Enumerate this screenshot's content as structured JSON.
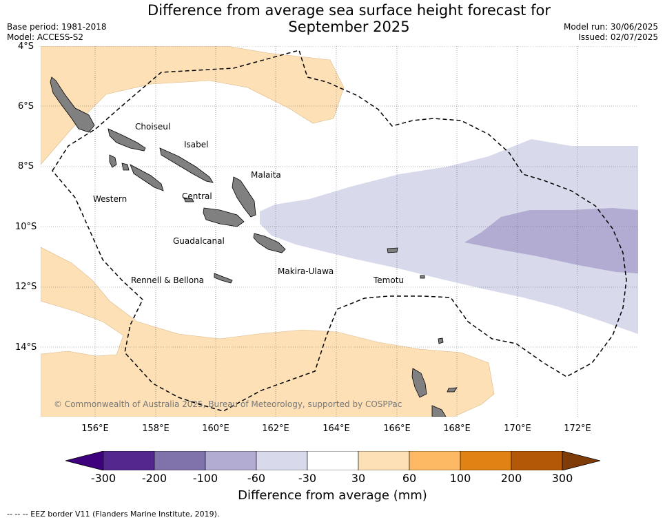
{
  "title_line1": "Difference from average sea surface height forecast for",
  "title_line2": "September 2025",
  "base_period": "Base period: 1981-2018",
  "model": "Model: ACCESS-S2",
  "model_run": "Model run: 30/06/2025",
  "issued": "Issued: 02/07/2025",
  "lat_labels": [
    "4°S",
    "6°S",
    "8°S",
    "10°S",
    "12°S",
    "14°S"
  ],
  "lon_labels": [
    "156°E",
    "158°E",
    "160°E",
    "162°E",
    "164°E",
    "166°E",
    "168°E",
    "170°E",
    "172°E"
  ],
  "places": {
    "choiseul": "Choiseul",
    "isabel": "Isabel",
    "malaita": "Malaita",
    "western": "Western",
    "central": "Central",
    "guadalcanal": "Guadalcanal",
    "makira": "Makira-Ulawa",
    "rennell": "Rennell & Bellona",
    "temotu": "Temotu"
  },
  "copyright": "© Commonwealth of Australia 2025, Bureau of Meteorology, supported by COSPPac",
  "colorbar": {
    "ticks": [
      "-300",
      "-200",
      "-100",
      "-60",
      "-30",
      "30",
      "60",
      "100",
      "200",
      "300"
    ],
    "colors": [
      "#3f007d",
      "#54278f",
      "#8073ac",
      "#b2abd2",
      "#d8daeb",
      "#ffffff",
      "#fee0b6",
      "#fdb863",
      "#e08214",
      "#b35806",
      "#7f3b08"
    ],
    "label": "Difference from average (mm)"
  },
  "eez_note": "--  --  -- EEZ border V11 (Flanders Marine Institute, 2019)."
}
